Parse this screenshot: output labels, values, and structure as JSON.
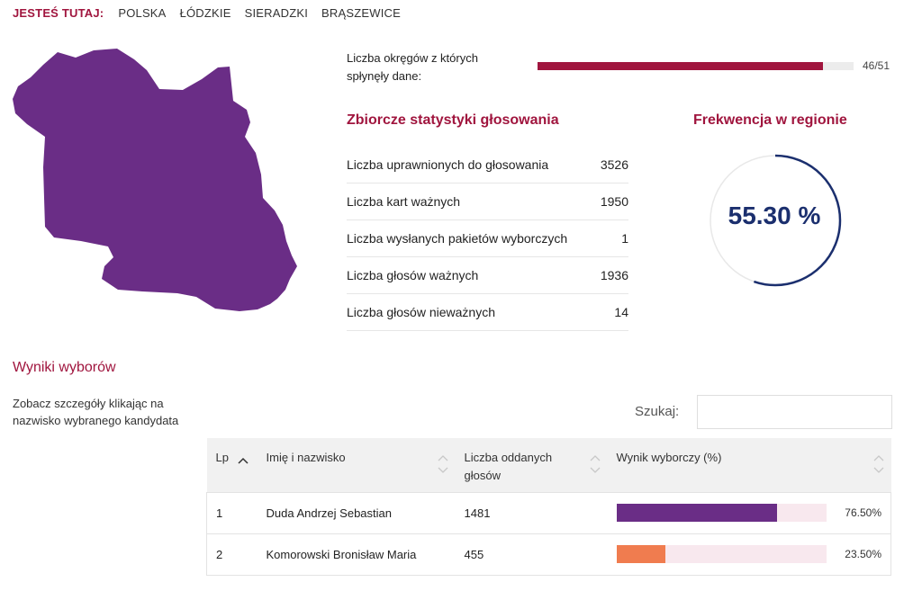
{
  "breadcrumb": {
    "label": "JESTEŚ TUTAJ:",
    "items": [
      "POLSKA",
      "ŁÓDZKIE",
      "SIERADZKI",
      "BRĄSZEWICE"
    ]
  },
  "map": {
    "fill_color": "#6a2d86"
  },
  "progress": {
    "label": "Liczba okręgów z których spłynęły dane:",
    "count_text": "46/51",
    "value": 46,
    "total": 51,
    "color": "#a0153e"
  },
  "stats": {
    "title": "Zbiorcze statystyki głosowania",
    "rows": [
      {
        "label": "Liczba uprawnionych do głosowania",
        "value": "3526"
      },
      {
        "label": "Liczba kart ważnych",
        "value": "1950"
      },
      {
        "label": "Liczba wysłanych pakietów wyborczych",
        "value": "1"
      },
      {
        "label": "Liczba głosów ważnych",
        "value": "1936"
      },
      {
        "label": "Liczba głosów nieważnych",
        "value": "14"
      }
    ]
  },
  "turnout": {
    "title": "Frekwencja w regionie",
    "value_text": "55.30 %",
    "percent": 55.3,
    "color": "#1b2f6e"
  },
  "results": {
    "title": "Wyniki wyborów",
    "hint": "Zobacz szczegóły klikając na nazwisko wybranego kandydata",
    "search_label": "Szukaj:",
    "search_value": "",
    "columns": [
      "Lp",
      "Imię i nazwisko",
      "Liczba oddanych głosów",
      "Wynik wyborczy (%)"
    ],
    "rows": [
      {
        "lp": "1",
        "name": "Duda Andrzej Sebastian",
        "votes": "1481",
        "pct_text": "76.50%",
        "pct": 76.5,
        "color": "#6a2d86"
      },
      {
        "lp": "2",
        "name": "Komorowski Bronisław Maria",
        "votes": "455",
        "pct_text": "23.50%",
        "pct": 23.5,
        "color": "#f07c4f"
      }
    ]
  }
}
